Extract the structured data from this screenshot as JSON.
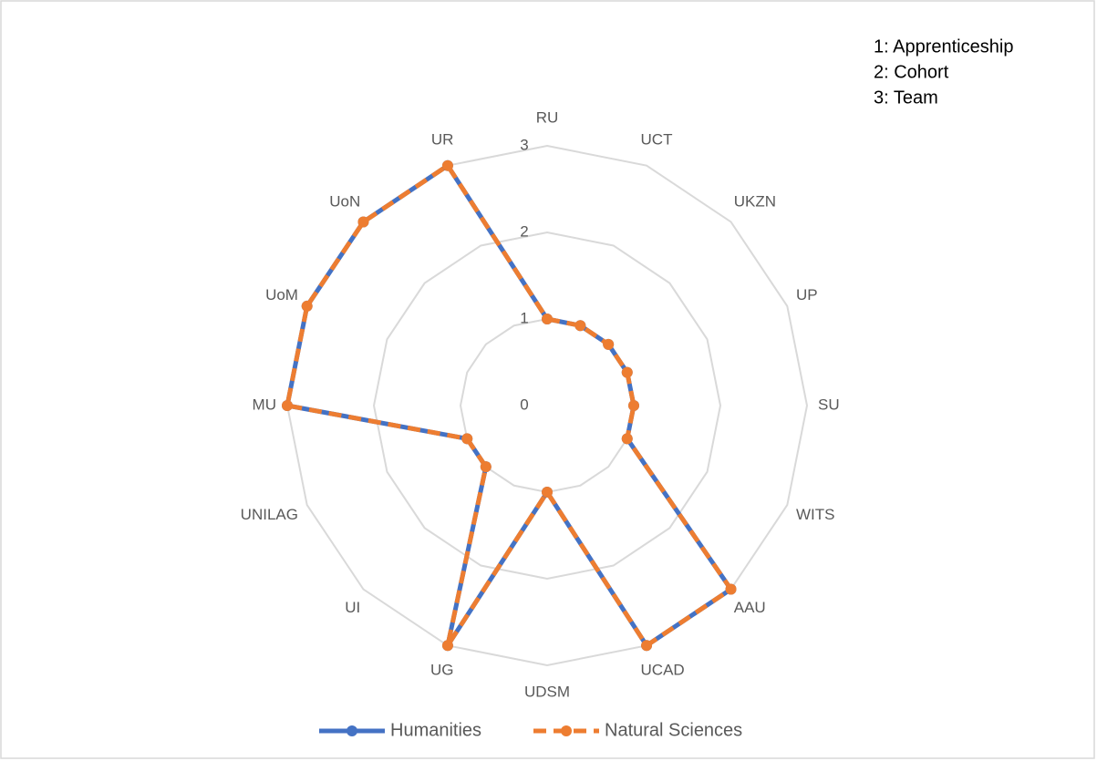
{
  "chart_data": {
    "type": "radar",
    "categories": [
      "RU",
      "UCT",
      "UKZN",
      "UP",
      "SU",
      "WITS",
      "AAU",
      "UCAD",
      "UDSM",
      "UG",
      "UI",
      "UNILAG",
      "MU",
      "UoM",
      "UoN",
      "UR"
    ],
    "series": [
      {
        "name": "Humanities",
        "color": "#4472c4",
        "values": [
          1,
          1,
          1,
          1,
          1,
          1,
          3,
          3,
          1,
          3,
          1,
          1,
          3,
          3,
          3,
          3
        ]
      },
      {
        "name": "Natural Sciences",
        "color": "#ed7d31",
        "values": [
          1,
          1,
          1,
          1,
          1,
          1,
          3,
          3,
          1,
          3,
          1,
          1,
          3,
          3,
          3,
          3
        ]
      }
    ],
    "ylim": [
      0,
      3
    ],
    "yticks": [
      0,
      1,
      2,
      3
    ],
    "grid": true,
    "legend": "bottom",
    "annotations": [
      "1: Apprenticeship",
      "2: Cohort",
      "3: Team"
    ]
  }
}
